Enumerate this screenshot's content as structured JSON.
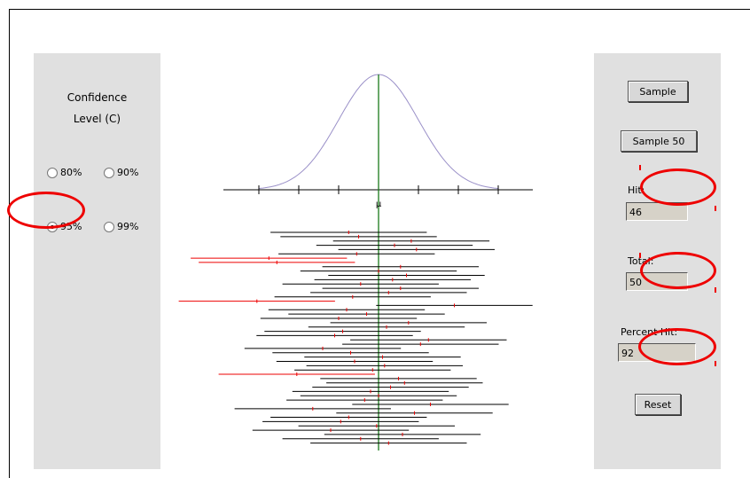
{
  "confidence": {
    "title_line1": "Confidence",
    "title_line2": "Level (C)",
    "options": [
      {
        "label": "80%",
        "checked": false
      },
      {
        "label": "90%",
        "checked": false
      },
      {
        "label": "95%",
        "checked": true
      },
      {
        "label": "99%",
        "checked": false
      }
    ]
  },
  "buttons": {
    "sample": "Sample",
    "sample50": "Sample 50",
    "reset": "Reset"
  },
  "stats": {
    "hit_label": "Hit:",
    "hit_value": "46",
    "total_label": "Total:",
    "total_value": "50",
    "percent_label": "Percent Hit:",
    "percent_value": "92"
  },
  "curve": {
    "mu_label": "μ",
    "curve_color": "#9a90c8",
    "mean_line_color": "#1a7a1a"
  },
  "intervals": [
    {
      "center": -0.75,
      "hit": true
    },
    {
      "center": -0.5,
      "hit": true
    },
    {
      "center": 0.82,
      "hit": true
    },
    {
      "center": 0.4,
      "hit": true
    },
    {
      "center": 0.95,
      "hit": true
    },
    {
      "center": -0.55,
      "hit": true
    },
    {
      "center": -2.75,
      "hit": false
    },
    {
      "center": -2.55,
      "hit": false
    },
    {
      "center": 0.55,
      "hit": true
    },
    {
      "center": 0.0,
      "hit": true
    },
    {
      "center": 0.7,
      "hit": true
    },
    {
      "center": 0.35,
      "hit": true
    },
    {
      "center": -0.45,
      "hit": true
    },
    {
      "center": 0.55,
      "hit": true
    },
    {
      "center": 0.25,
      "hit": true
    },
    {
      "center": -0.65,
      "hit": true
    },
    {
      "center": -3.05,
      "hit": false
    },
    {
      "center": 1.9,
      "hit": true
    },
    {
      "center": -0.8,
      "hit": true
    },
    {
      "center": -0.3,
      "hit": true
    },
    {
      "center": -1.0,
      "hit": true
    },
    {
      "center": 0.75,
      "hit": true
    },
    {
      "center": 0.2,
      "hit": true
    },
    {
      "center": -0.9,
      "hit": true
    },
    {
      "center": -1.1,
      "hit": true
    },
    {
      "center": 1.25,
      "hit": true
    },
    {
      "center": 1.05,
      "hit": true
    },
    {
      "center": -1.4,
      "hit": true
    },
    {
      "center": -0.7,
      "hit": true
    },
    {
      "center": 0.1,
      "hit": true
    },
    {
      "center": -0.6,
      "hit": true
    },
    {
      "center": 0.15,
      "hit": true
    },
    {
      "center": -0.15,
      "hit": true
    },
    {
      "center": -2.05,
      "hit": false
    },
    {
      "center": 0.5,
      "hit": true
    },
    {
      "center": 0.65,
      "hit": true
    },
    {
      "center": 0.3,
      "hit": true
    },
    {
      "center": -0.2,
      "hit": true
    },
    {
      "center": 0.0,
      "hit": true
    },
    {
      "center": -0.35,
      "hit": true
    },
    {
      "center": 1.3,
      "hit": true
    },
    {
      "center": -1.65,
      "hit": true
    },
    {
      "center": 0.9,
      "hit": true
    },
    {
      "center": -0.75,
      "hit": true
    },
    {
      "center": -0.95,
      "hit": true
    },
    {
      "center": -0.05,
      "hit": true
    },
    {
      "center": -1.2,
      "hit": true
    },
    {
      "center": 0.6,
      "hit": true
    },
    {
      "center": -0.45,
      "hit": true
    },
    {
      "center": 0.25,
      "hit": true
    }
  ]
}
